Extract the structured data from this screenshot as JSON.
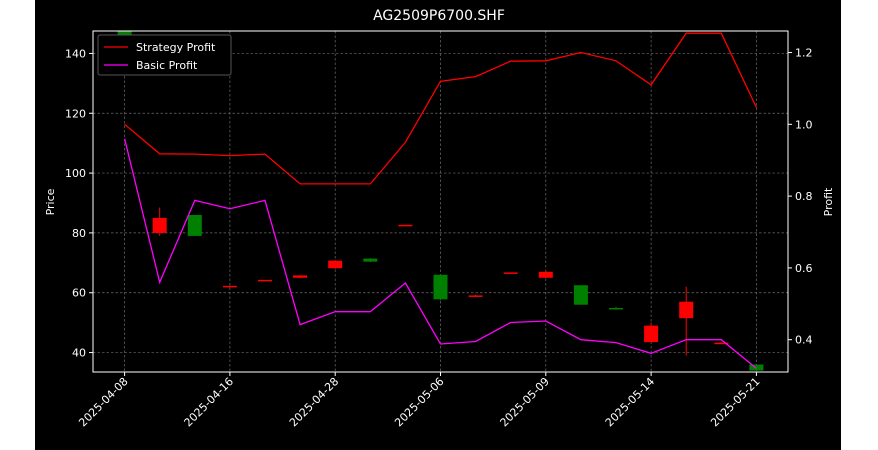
{
  "chart_data": {
    "type": "candlestick+line",
    "title": "AG2509P6700.SHF",
    "xlabel": "",
    "ylabel_left": "Price",
    "ylabel_right": "Profit",
    "ylim_left": [
      33.5,
      147.5
    ],
    "ylim_right": [
      0.31,
      1.26
    ],
    "yticks_left": [
      40,
      60,
      80,
      100,
      120,
      140
    ],
    "yticks_right": [
      0.4,
      0.6,
      0.8,
      1.0,
      1.2
    ],
    "xtick_labels": [
      "2025-04-08",
      "2025-04-16",
      "2025-04-28",
      "2025-05-06",
      "2025-05-09",
      "2025-05-14",
      "2025-05-21"
    ],
    "xtick_positions": [
      0,
      3,
      6,
      9,
      12,
      15,
      18
    ],
    "grid": true,
    "legend_position": "top-left",
    "colors": {
      "up": "#ff0000",
      "down": "#008000",
      "strategy": "#ff0000",
      "basic": "#ff00ff",
      "text": "#ffffff"
    },
    "candles": [
      {
        "i": 0,
        "open": 147.5,
        "high": 147.5,
        "low": 142.0,
        "close": 142.0
      },
      {
        "i": 1,
        "open": 80.0,
        "high": 88.5,
        "low": 79.0,
        "close": 85.0
      },
      {
        "i": 2,
        "open": 86.0,
        "high": 86.0,
        "low": 79.0,
        "close": 79.0
      },
      {
        "i": 3,
        "open": 62.0,
        "high": 62.3,
        "low": 61.8,
        "close": 62.3
      },
      {
        "i": 4,
        "open": 64.0,
        "high": 64.3,
        "low": 63.8,
        "close": 64.3
      },
      {
        "i": 5,
        "open": 65.0,
        "high": 65.8,
        "low": 64.9,
        "close": 65.8
      },
      {
        "i": 6,
        "open": 68.2,
        "high": 70.9,
        "low": 68.0,
        "close": 70.7
      },
      {
        "i": 7,
        "open": 71.4,
        "high": 71.6,
        "low": 70.2,
        "close": 70.4
      },
      {
        "i": 8,
        "open": 82.5,
        "high": 82.7,
        "low": 82.3,
        "close": 82.7
      },
      {
        "i": 9,
        "open": 66.0,
        "high": 66.0,
        "low": 57.5,
        "close": 57.8
      },
      {
        "i": 10,
        "open": 58.8,
        "high": 59.3,
        "low": 58.6,
        "close": 59.1
      },
      {
        "i": 11,
        "open": 66.5,
        "high": 66.8,
        "low": 66.3,
        "close": 66.8
      },
      {
        "i": 12,
        "open": 65.0,
        "high": 67.2,
        "low": 64.9,
        "close": 67.0
      },
      {
        "i": 13,
        "open": 62.5,
        "high": 62.5,
        "low": 56.0,
        "close": 56.0
      },
      {
        "i": 14,
        "open": 54.9,
        "high": 55.3,
        "low": 54.3,
        "close": 54.5
      },
      {
        "i": 15,
        "open": 43.5,
        "high": 50.0,
        "low": 43.3,
        "close": 49.0
      },
      {
        "i": 16,
        "open": 51.5,
        "high": 62.0,
        "low": 39.0,
        "close": 57.0
      },
      {
        "i": 17,
        "open": 43.2,
        "high": 43.4,
        "low": 43.0,
        "close": 43.3
      },
      {
        "i": 18,
        "open": 36.0,
        "high": 36.0,
        "low": 34.0,
        "close": 34.0
      }
    ],
    "series": [
      {
        "name": "Strategy Profit",
        "values": [
          1.0,
          0.918,
          0.917,
          0.913,
          0.917,
          0.834,
          0.834,
          0.834,
          0.95,
          1.12,
          1.133,
          1.176,
          1.177,
          1.2,
          1.177,
          1.11,
          1.254,
          1.254,
          1.047
        ]
      },
      {
        "name": "Basic Profit",
        "values": [
          0.96,
          0.56,
          0.788,
          0.765,
          0.788,
          0.442,
          0.478,
          0.478,
          0.558,
          0.388,
          0.395,
          0.448,
          0.452,
          0.4,
          0.392,
          0.362,
          0.4,
          0.4,
          0.32
        ]
      }
    ]
  }
}
